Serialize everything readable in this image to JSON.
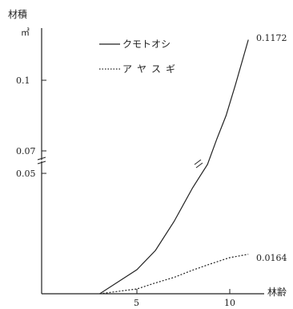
{
  "chart_data": {
    "type": "line",
    "ylabel": "材積",
    "yunit": "㎥",
    "xlabel": "林齢",
    "x_ticks": [
      5,
      10
    ],
    "y_ticks": [
      "0.1",
      "0.07",
      "0.05"
    ],
    "x_range": [
      0,
      11.5
    ],
    "y_scale": "broken (0.05–0.07 break)",
    "grid": false,
    "legend_position": "top-center",
    "series": [
      {
        "name": "クモトオシ",
        "style": "solid",
        "color": "#222222",
        "end_label": "0.1172",
        "points": [
          [
            3,
            0
          ],
          [
            5,
            0.01
          ],
          [
            6,
            0.018
          ],
          [
            7,
            0.03
          ],
          [
            8,
            0.044
          ],
          [
            8.8,
            0.058
          ],
          [
            9.3,
            0.075
          ],
          [
            9.8,
            0.085
          ],
          [
            10.3,
            0.098
          ],
          [
            11,
            0.1172
          ]
        ]
      },
      {
        "name": "アヤスギ",
        "style": "dotted",
        "color": "#222222",
        "end_label": "0.0164",
        "points": [
          [
            3,
            0
          ],
          [
            5,
            0.002
          ],
          [
            6,
            0.0045
          ],
          [
            7,
            0.0068
          ],
          [
            8,
            0.0098
          ],
          [
            9,
            0.0125
          ],
          [
            10,
            0.015
          ],
          [
            11,
            0.0164
          ]
        ]
      }
    ]
  }
}
